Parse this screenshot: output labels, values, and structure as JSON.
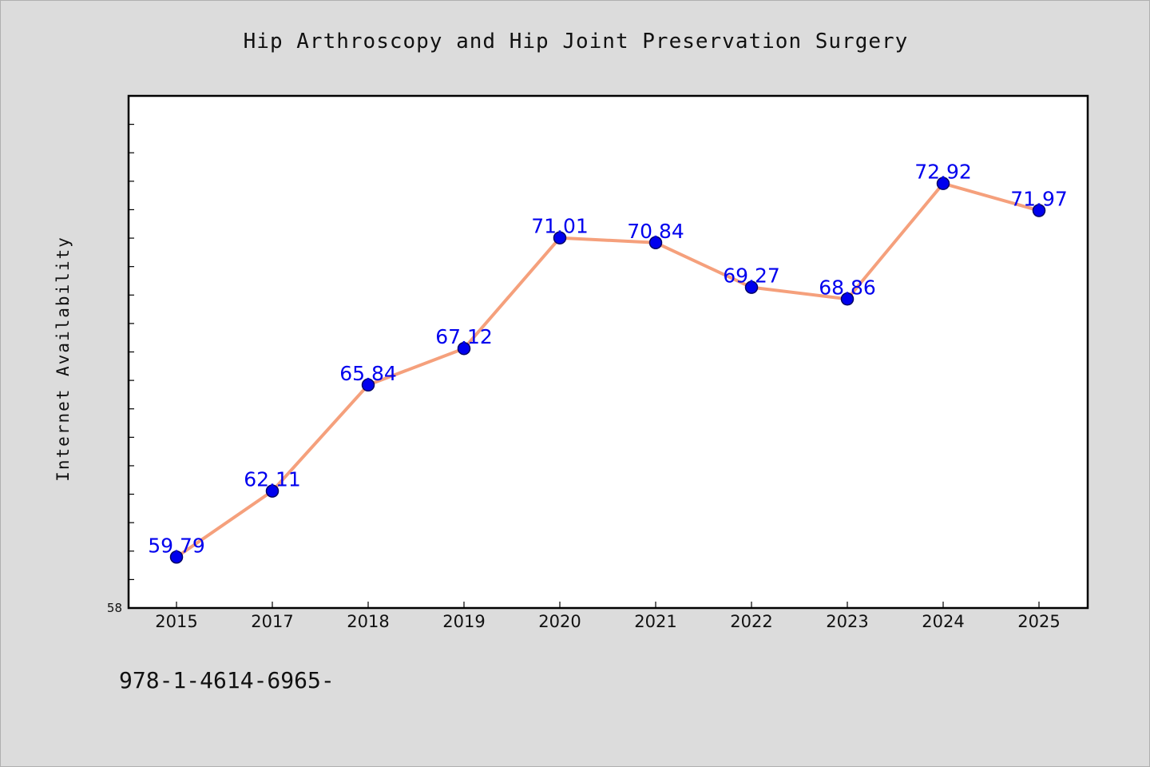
{
  "chart_data": {
    "type": "line",
    "title": "Hip Arthroscopy and Hip Joint Preservation Surgery",
    "xlabel": "",
    "ylabel": "Internet Availability",
    "categories": [
      "2015",
      "2017",
      "2018",
      "2019",
      "2020",
      "2021",
      "2022",
      "2023",
      "2024",
      "2025"
    ],
    "values": [
      59.79,
      62.11,
      65.84,
      67.12,
      71.01,
      70.84,
      69.27,
      68.86,
      72.92,
      71.97
    ],
    "data_labels": [
      "59.79",
      "62.11",
      "65.84",
      "67.12",
      "71.01",
      "70.84",
      "69.27",
      "68.86",
      "72.92",
      "71.97"
    ],
    "ylim": [
      58,
      76
    ],
    "y_tick_labels": [
      "58"
    ],
    "grid": false,
    "legend": "none",
    "colors": {
      "line": "#f5a07c",
      "marker": "#0000ee",
      "marker_edge": "#000066",
      "data_label": "#0000ee",
      "background": "#dcdcdc",
      "plot_background": "#ffffff"
    }
  },
  "footer": {
    "isbn": "978-1-4614-6965-"
  }
}
